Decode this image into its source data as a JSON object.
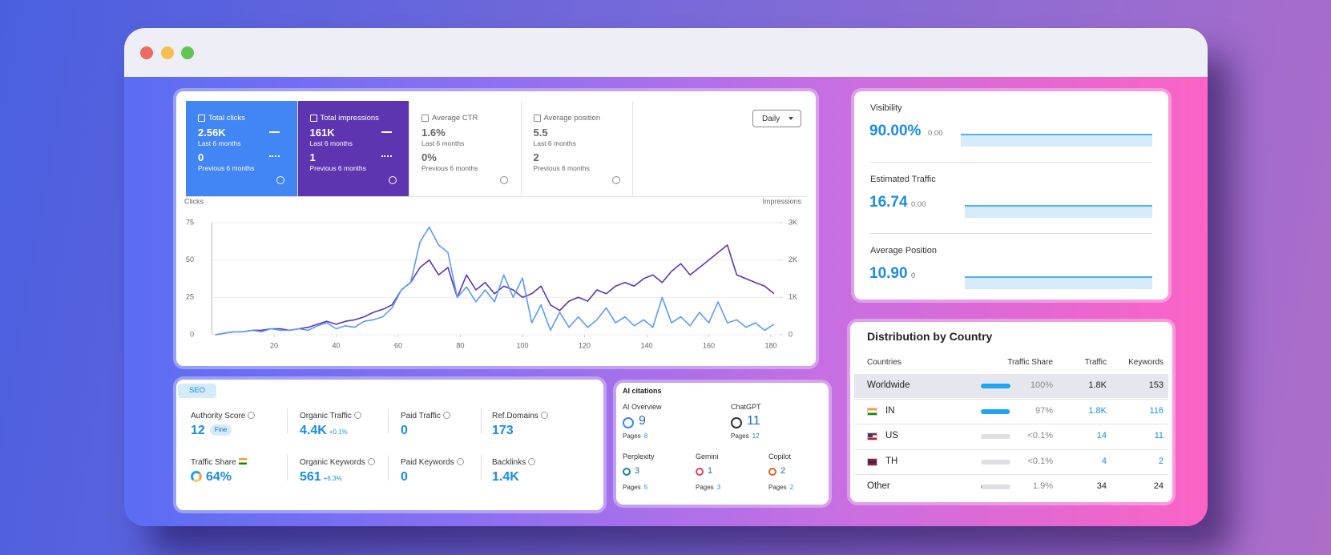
{
  "metric_cards": [
    {
      "label": "Total clicks",
      "current": "2.56K",
      "current_period": "Last 6 months",
      "previous": "0",
      "previous_period": "Previous 6 months"
    },
    {
      "label": "Total impressions",
      "current": "161K",
      "current_period": "Last 6 months",
      "previous": "1",
      "previous_period": "Previous 6 months"
    },
    {
      "label": "Average CTR",
      "current": "1.6%",
      "current_period": "Last 6 months",
      "previous": "0%",
      "previous_period": "Previous 6 months"
    },
    {
      "label": "Average position",
      "current": "5.5",
      "current_period": "Last 6 months",
      "previous": "2",
      "previous_period": "Previous 6 months"
    }
  ],
  "interval_button": "Daily",
  "chart_data": {
    "type": "line",
    "y_label": "Clicks",
    "y2_label": "Impressions",
    "x": [
      1,
      4,
      7,
      10,
      13,
      16,
      19,
      22,
      25,
      28,
      31,
      34,
      37,
      40,
      43,
      46,
      49,
      52,
      55,
      58,
      61,
      64,
      67,
      70,
      73,
      76,
      79,
      82,
      85,
      88,
      91,
      94,
      97,
      100,
      103,
      106,
      109,
      112,
      115,
      118,
      121,
      124,
      127,
      130,
      133,
      136,
      139,
      142,
      145,
      148,
      151,
      154,
      157,
      160,
      163,
      166,
      169,
      172,
      175,
      178,
      181
    ],
    "xlim": [
      0,
      183
    ],
    "xticks": [
      20,
      40,
      60,
      80,
      100,
      120,
      140,
      160,
      180
    ],
    "ylim": [
      0,
      75
    ],
    "yticks": [
      0,
      25,
      50,
      75
    ],
    "y2lim": [
      0,
      3000
    ],
    "y2ticks": [
      0,
      {
        "value": 1000,
        "label": "1K"
      },
      {
        "value": 2000,
        "label": "2K"
      },
      {
        "value": 3000,
        "label": "3K"
      }
    ],
    "grid": true,
    "series": [
      {
        "color": "#5c9cf5",
        "values": [
          0,
          1,
          2,
          2,
          3,
          2,
          4,
          3,
          3,
          4,
          3,
          6,
          8,
          4,
          6,
          5,
          9,
          10,
          12,
          18,
          30,
          35,
          62,
          72,
          60,
          55,
          25,
          32,
          22,
          30,
          22,
          40,
          25,
          38,
          8,
          20,
          3,
          15,
          5,
          12,
          5,
          10,
          18,
          8,
          12,
          6,
          10,
          5,
          25,
          8,
          12,
          6,
          15,
          8,
          22,
          8,
          10,
          5,
          8,
          3,
          7
        ]
      },
      {
        "color": "#5e35b1",
        "axis": "y2",
        "values": [
          0,
          40,
          80,
          80,
          120,
          120,
          160,
          160,
          120,
          160,
          200,
          280,
          360,
          280,
          360,
          400,
          480,
          600,
          680,
          800,
          1200,
          1400,
          1800,
          2000,
          1600,
          1800,
          1000,
          1600,
          1200,
          1400,
          1100,
          1300,
          1200,
          1000,
          1100,
          1300,
          800,
          650,
          900,
          1000,
          900,
          1200,
          1100,
          1300,
          1400,
          1300,
          1500,
          1600,
          1400,
          1700,
          1900,
          1600,
          1800,
          2000,
          2200,
          2400,
          1600,
          1500,
          1400,
          1300,
          1100
        ]
      }
    ]
  },
  "visibility_panel": {
    "rows": [
      {
        "label": "Visibility",
        "value": "90.00%",
        "change": "0.00"
      },
      {
        "label": "Estimated Traffic",
        "value": "16.74",
        "change": "0.00"
      },
      {
        "label": "Average Position",
        "value": "10.90",
        "change": "0"
      }
    ]
  },
  "country_table": {
    "title": "Distribution by Country",
    "columns": [
      "Countries",
      "Traffic Share",
      "Traffic",
      "Keywords"
    ],
    "rows": [
      {
        "country": "Worldwide",
        "share": 100,
        "share_label": "100%",
        "traffic": "1.8K",
        "keywords": "153"
      },
      {
        "country": "IN",
        "share": 97,
        "share_label": "97%",
        "traffic": "1.8K",
        "keywords": "116"
      },
      {
        "country": "US",
        "share": 0.1,
        "share_label": "<0.1%",
        "traffic": "14",
        "keywords": "11"
      },
      {
        "country": "TH",
        "share": 0.1,
        "share_label": "<0.1%",
        "traffic": "4",
        "keywords": "2"
      },
      {
        "country": "Other",
        "share": 1.9,
        "share_label": "1.9%",
        "traffic": "34",
        "keywords": "24"
      }
    ]
  },
  "seo_panel": {
    "tag": "SEO",
    "metrics": [
      {
        "label": "Authority Score",
        "value": "12",
        "badge": "Fine"
      },
      {
        "label": "Organic Traffic",
        "value": "4.4K",
        "change": "+0.1%"
      },
      {
        "label": "Paid Traffic",
        "value": "0"
      },
      {
        "label": "Ref.Domains",
        "value": "173"
      },
      {
        "label": "Traffic Share",
        "value": "64%"
      },
      {
        "label": "Organic Keywords",
        "value": "561",
        "change": "+6.3%"
      },
      {
        "label": "Paid Keywords",
        "value": "0"
      },
      {
        "label": "Backlinks",
        "value": "1.4K"
      }
    ]
  },
  "ai_citations": {
    "title": "AI citations",
    "items": [
      {
        "name": "AI Overview",
        "value": "9",
        "pages_label": "Pages",
        "pages": "8"
      },
      {
        "name": "ChatGPT",
        "value": "11",
        "pages_label": "Pages",
        "pages": "12"
      },
      {
        "name": "Perplexity",
        "value": "3",
        "pages_label": "Pages",
        "pages": "5"
      },
      {
        "name": "Gemini",
        "value": "1",
        "pages_label": "Pages",
        "pages": "3"
      },
      {
        "name": "Copilot",
        "value": "2",
        "pages_label": "Pages",
        "pages": "2"
      }
    ]
  }
}
